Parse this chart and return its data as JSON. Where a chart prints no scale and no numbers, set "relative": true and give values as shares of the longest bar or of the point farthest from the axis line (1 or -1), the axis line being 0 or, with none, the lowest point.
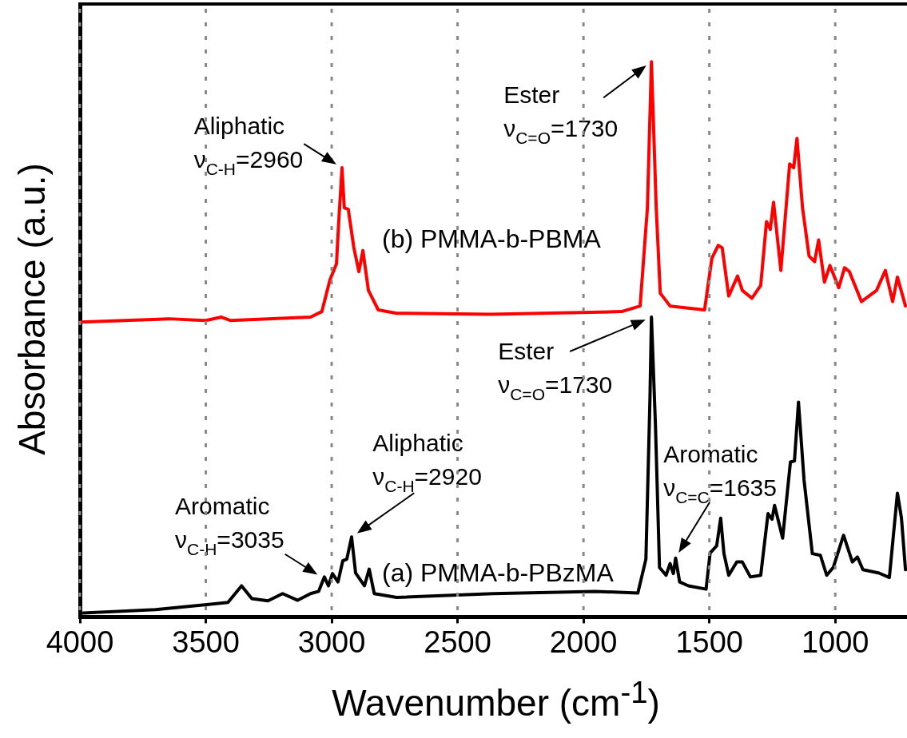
{
  "chart_data": {
    "type": "line",
    "xlabel": "Wavenumber (cm$^{-1}$)",
    "ylabel": "Absorbance (a.u.)",
    "relative": true,
    "xlim": [
      4000,
      715
    ],
    "xticks": [
      4000,
      3500,
      3000,
      2500,
      2000,
      1500,
      1000
    ],
    "grid": "x",
    "marker": "none",
    "line_style": "solid",
    "series": [
      {
        "name": "(a) PMMA-b-PBzMA",
        "color": "#000000",
        "x": [
          3987,
          3700,
          3412,
          3358,
          3317,
          3253,
          3195,
          3135,
          3084,
          3052,
          3029,
          3013,
          2997,
          2975,
          2956,
          2940,
          2921,
          2905,
          2870,
          2851,
          2831,
          2742,
          2359,
          1953,
          1784,
          1752,
          1736,
          1730,
          1714,
          1698,
          1672,
          1656,
          1643,
          1634,
          1618,
          1583,
          1513,
          1497,
          1471,
          1455,
          1442,
          1423,
          1391,
          1369,
          1337,
          1296,
          1267,
          1251,
          1241,
          1209,
          1178,
          1162,
          1146,
          1124,
          1091,
          1059,
          1034,
          1008,
          967,
          932,
          912,
          890,
          826,
          785,
          753,
          737,
          721
        ],
        "values": [
          0.007,
          0.013,
          0.026,
          0.056,
          0.033,
          0.029,
          0.042,
          0.03,
          0.042,
          0.046,
          0.072,
          0.056,
          0.078,
          0.063,
          0.101,
          0.104,
          0.144,
          0.079,
          0.056,
          0.086,
          0.042,
          0.035,
          0.042,
          0.046,
          0.043,
          0.104,
          0.391,
          0.54,
          0.344,
          0.089,
          0.075,
          0.096,
          0.078,
          0.106,
          0.063,
          0.056,
          0.05,
          0.115,
          0.128,
          0.178,
          0.114,
          0.075,
          0.099,
          0.099,
          0.072,
          0.075,
          0.186,
          0.176,
          0.201,
          0.142,
          0.279,
          0.281,
          0.387,
          0.247,
          0.114,
          0.111,
          0.075,
          0.089,
          0.147,
          0.099,
          0.108,
          0.085,
          0.079,
          0.071,
          0.223,
          0.178,
          0.085
        ]
      },
      {
        "name": "(b) PMMA-b-PBMA",
        "color": "#ff0000",
        "x": [
          3997,
          3646,
          3500,
          3438,
          3403,
          3084,
          3039,
          3007,
          2981,
          2972,
          2959,
          2950,
          2934,
          2912,
          2892,
          2876,
          2854,
          2815,
          2742,
          2368,
          1848,
          1775,
          1746,
          1730,
          1711,
          1695,
          1656,
          1519,
          1490,
          1465,
          1449,
          1423,
          1388,
          1369,
          1331,
          1296,
          1273,
          1258,
          1245,
          1216,
          1181,
          1165,
          1152,
          1130,
          1104,
          1082,
          1066,
          1043,
          1021,
          986,
          963,
          944,
          896,
          836,
          801,
          772,
          753,
          721
        ],
        "values": [
          0.531,
          0.537,
          0.534,
          0.54,
          0.534,
          0.54,
          0.55,
          0.607,
          0.636,
          0.712,
          0.809,
          0.737,
          0.734,
          0.665,
          0.622,
          0.66,
          0.588,
          0.553,
          0.547,
          0.545,
          0.55,
          0.56,
          0.737,
          1,
          0.737,
          0.583,
          0.56,
          0.553,
          0.646,
          0.669,
          0.665,
          0.578,
          0.614,
          0.588,
          0.574,
          0.597,
          0.712,
          0.698,
          0.747,
          0.624,
          0.816,
          0.809,
          0.862,
          0.737,
          0.65,
          0.64,
          0.679,
          0.603,
          0.633,
          0.593,
          0.629,
          0.622,
          0.568,
          0.588,
          0.624,
          0.568,
          0.612,
          0.56
        ]
      }
    ],
    "annotations": [
      {
        "text": "Aliphatic\nν$_{C-H}$=2960",
        "x": 2960,
        "y": 0.809
      },
      {
        "text": "Ester\nν$_{C=O}$=1730",
        "x": 1730,
        "y": 1
      },
      {
        "text": "Ester\nν$_{C=O}$=1730",
        "x": 1730,
        "y": 0.54
      },
      {
        "text": "Aliphatic\nν$_{C-H}$=2920",
        "x": 2920,
        "y": 0.144
      },
      {
        "text": "Aromatic\nν$_{C-H}$=3035",
        "x": 3035,
        "y": 0.07
      },
      {
        "text": "Aromatic\nν$_{C=C}$=1635",
        "x": 1635,
        "y": 0.106
      }
    ]
  }
}
